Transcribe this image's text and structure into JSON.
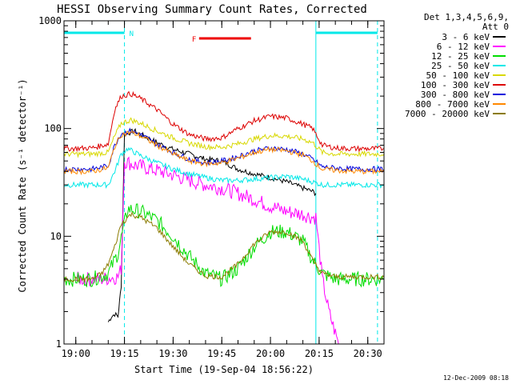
{
  "chart_data": {
    "type": "line",
    "title": "HESSI Observing Summary Count Rates, Corrected",
    "xlabel": "Start Time (19-Sep-04 18:56:22)",
    "ylabel": "Corrected Count Rate (s⁻¹ detector⁻¹)",
    "y_scale": "log",
    "ylim": [
      1,
      1000
    ],
    "y_ticks": [
      {
        "value": 1,
        "label": "1"
      },
      {
        "value": 10,
        "label": "10"
      },
      {
        "value": 100,
        "label": "100"
      },
      {
        "value": 1000,
        "label": "1000"
      }
    ],
    "xlim": [
      "18:56:22",
      "20:35:00"
    ],
    "x_ticks": [
      {
        "value": "19:00",
        "label": "19:00"
      },
      {
        "value": "19:15",
        "label": "19:15"
      },
      {
        "value": "19:30",
        "label": "19:30"
      },
      {
        "value": "19:45",
        "label": "19:45"
      },
      {
        "value": "20:00",
        "label": "20:00"
      },
      {
        "value": "20:15",
        "label": "20:15"
      },
      {
        "value": "20:30",
        "label": "20:30"
      }
    ],
    "legend_header": [
      "Det 1,3,4,5,6,9,",
      "Att 0"
    ],
    "legend_position": "right",
    "series": [
      {
        "name": "3 - 6 keV",
        "color": "#000000",
        "x": [
          "19:10",
          "19:11",
          "19:12",
          "19:13",
          "19:13:30",
          "19:14",
          "19:15",
          "19:18",
          "19:22",
          "19:26",
          "19:30",
          "19:35",
          "19:40",
          "19:45",
          "19:50",
          "19:55",
          "20:00",
          "20:05",
          "20:10",
          "20:13",
          "20:14"
        ],
        "y": [
          1.6,
          1.8,
          1.9,
          1.8,
          2.5,
          3.5,
          88,
          95,
          82,
          72,
          64,
          58,
          52,
          50,
          42,
          38,
          35,
          32,
          28,
          26,
          25
        ]
      },
      {
        "name": "6 - 12 keV",
        "color": "#ff00ff",
        "x": [
          "19:00",
          "19:08",
          "19:13",
          "19:14",
          "19:15",
          "19:18",
          "19:22",
          "19:26",
          "19:30",
          "19:35",
          "19:40",
          "19:45",
          "19:50",
          "19:55",
          "20:00",
          "20:05",
          "20:10",
          "20:13",
          "20:14",
          "20:16",
          "20:18",
          "20:21"
        ],
        "y": [
          4,
          4,
          4.2,
          5,
          50,
          46,
          43,
          40,
          37,
          33,
          30,
          28,
          25,
          22,
          19,
          17,
          16,
          15,
          15,
          4,
          2,
          1
        ]
      },
      {
        "name": "12 - 25 keV",
        "color": "#00dd00",
        "x": [
          "18:56:22",
          "19:05",
          "19:10",
          "19:13",
          "19:16",
          "19:20",
          "19:25",
          "19:30",
          "19:35",
          "19:40",
          "19:45",
          "19:50",
          "19:55",
          "20:00",
          "20:05",
          "20:10",
          "20:13",
          "20:16",
          "20:20",
          "20:25",
          "20:30",
          "20:35"
        ],
        "y": [
          4,
          4,
          4.5,
          7,
          18,
          17,
          14,
          10,
          6.5,
          4.5,
          4,
          5,
          8,
          11,
          11,
          9,
          6,
          4.5,
          4,
          4,
          4,
          4
        ]
      },
      {
        "name": "25 - 50 keV",
        "color": "#00e8e8",
        "x": [
          "18:56:22",
          "19:05",
          "19:10",
          "19:12",
          "19:14",
          "19:16",
          "19:20",
          "19:25",
          "19:30",
          "19:35",
          "19:40",
          "19:45",
          "19:50",
          "19:55",
          "20:00",
          "20:05",
          "20:10",
          "20:13",
          "20:16",
          "20:20",
          "20:25",
          "20:30",
          "20:35"
        ],
        "y": [
          30,
          30,
          30,
          40,
          58,
          65,
          56,
          48,
          42,
          38,
          35,
          33,
          33,
          34,
          35,
          36,
          34,
          32,
          30,
          30,
          30,
          30,
          30
        ]
      },
      {
        "name": "50 - 100 keV",
        "color": "#d8d800",
        "x": [
          "18:56:22",
          "19:05",
          "19:10",
          "19:12",
          "19:14",
          "19:17",
          "19:20",
          "19:25",
          "19:30",
          "19:35",
          "19:40",
          "19:45",
          "19:50",
          "19:55",
          "20:00",
          "20:05",
          "20:10",
          "20:13",
          "20:16",
          "20:20",
          "20:25",
          "20:30",
          "20:35"
        ],
        "y": [
          58,
          58,
          60,
          85,
          112,
          120,
          112,
          95,
          82,
          73,
          68,
          67,
          72,
          80,
          86,
          85,
          80,
          74,
          60,
          58,
          58,
          58,
          58
        ]
      },
      {
        "name": "100 - 300 keV",
        "color": "#dd0000",
        "x": [
          "18:56:22",
          "19:05",
          "19:10",
          "19:12",
          "19:14",
          "19:17",
          "19:20",
          "19:25",
          "19:30",
          "19:35",
          "19:40",
          "19:45",
          "19:50",
          "19:55",
          "20:00",
          "20:05",
          "20:10",
          "20:13",
          "20:16",
          "20:20",
          "20:25",
          "20:30",
          "20:35"
        ],
        "y": [
          65,
          66,
          72,
          150,
          200,
          210,
          190,
          150,
          110,
          88,
          80,
          82,
          100,
          118,
          130,
          125,
          110,
          100,
          70,
          66,
          65,
          65,
          65
        ]
      },
      {
        "name": "300 - 800 keV",
        "color": "#0000dd",
        "x": [
          "18:56:22",
          "19:05",
          "19:10",
          "19:12",
          "19:14",
          "19:17",
          "19:20",
          "19:25",
          "19:30",
          "19:35",
          "19:40",
          "19:45",
          "19:50",
          "19:55",
          "20:00",
          "20:05",
          "20:10",
          "20:13",
          "20:16",
          "20:20",
          "20:25",
          "20:30",
          "20:35"
        ],
        "y": [
          42,
          42,
          45,
          70,
          90,
          95,
          88,
          72,
          60,
          52,
          48,
          50,
          55,
          62,
          66,
          64,
          58,
          52,
          44,
          43,
          42,
          42,
          42
        ]
      },
      {
        "name": "800 - 7000 keV",
        "color": "#ff8800",
        "x": [
          "18:56:22",
          "19:05",
          "19:10",
          "19:12",
          "19:14",
          "19:17",
          "19:20",
          "19:25",
          "19:30",
          "19:35",
          "19:40",
          "19:45",
          "19:50",
          "19:55",
          "20:00",
          "20:05",
          "20:10",
          "20:13",
          "20:16",
          "20:20",
          "20:25",
          "20:30",
          "20:35"
        ],
        "y": [
          40,
          40,
          43,
          68,
          88,
          92,
          85,
          70,
          58,
          50,
          47,
          48,
          53,
          60,
          64,
          62,
          57,
          50,
          42,
          41,
          40,
          40,
          40
        ]
      },
      {
        "name": "7000 - 20000 keV",
        "color": "#8b7b00",
        "x": [
          "18:56:22",
          "19:05",
          "19:08",
          "19:10",
          "19:12",
          "19:14",
          "19:17",
          "19:20",
          "19:25",
          "19:30",
          "19:35",
          "19:40",
          "19:45",
          "19:50",
          "19:55",
          "20:00",
          "20:05",
          "20:10",
          "20:13",
          "20:16",
          "20:20",
          "20:25",
          "20:30",
          "20:35"
        ],
        "y": [
          4,
          4,
          4.5,
          5.5,
          8,
          13,
          16,
          15,
          12,
          8,
          5.5,
          4.3,
          4.2,
          5.5,
          8.5,
          11,
          11,
          9,
          6,
          4.5,
          4.2,
          4.2,
          4.2,
          4.2
        ]
      }
    ],
    "flags": [
      {
        "label": "",
        "color": "#00e8e8",
        "start": "18:56:22",
        "end": "19:15"
      },
      {
        "label": "N",
        "color": "#00e8e8",
        "start": "19:15",
        "end": "19:15"
      },
      {
        "label": "F",
        "color": "#ee0000",
        "start": "19:38",
        "end": "19:54"
      },
      {
        "label": "",
        "color": "#00e8e8",
        "start": "20:14",
        "end": "20:33"
      }
    ],
    "vertical_lines": [
      {
        "time": "18:56:22",
        "color": "#00e8e8",
        "style": "solid"
      },
      {
        "time": "19:15",
        "color": "#00e8e8",
        "style": "dashed"
      },
      {
        "time": "20:14",
        "color": "#00e8e8",
        "style": "solid"
      },
      {
        "time": "20:33",
        "color": "#00e8e8",
        "style": "dashed"
      }
    ],
    "footer": "12-Dec-2009 08:18"
  }
}
